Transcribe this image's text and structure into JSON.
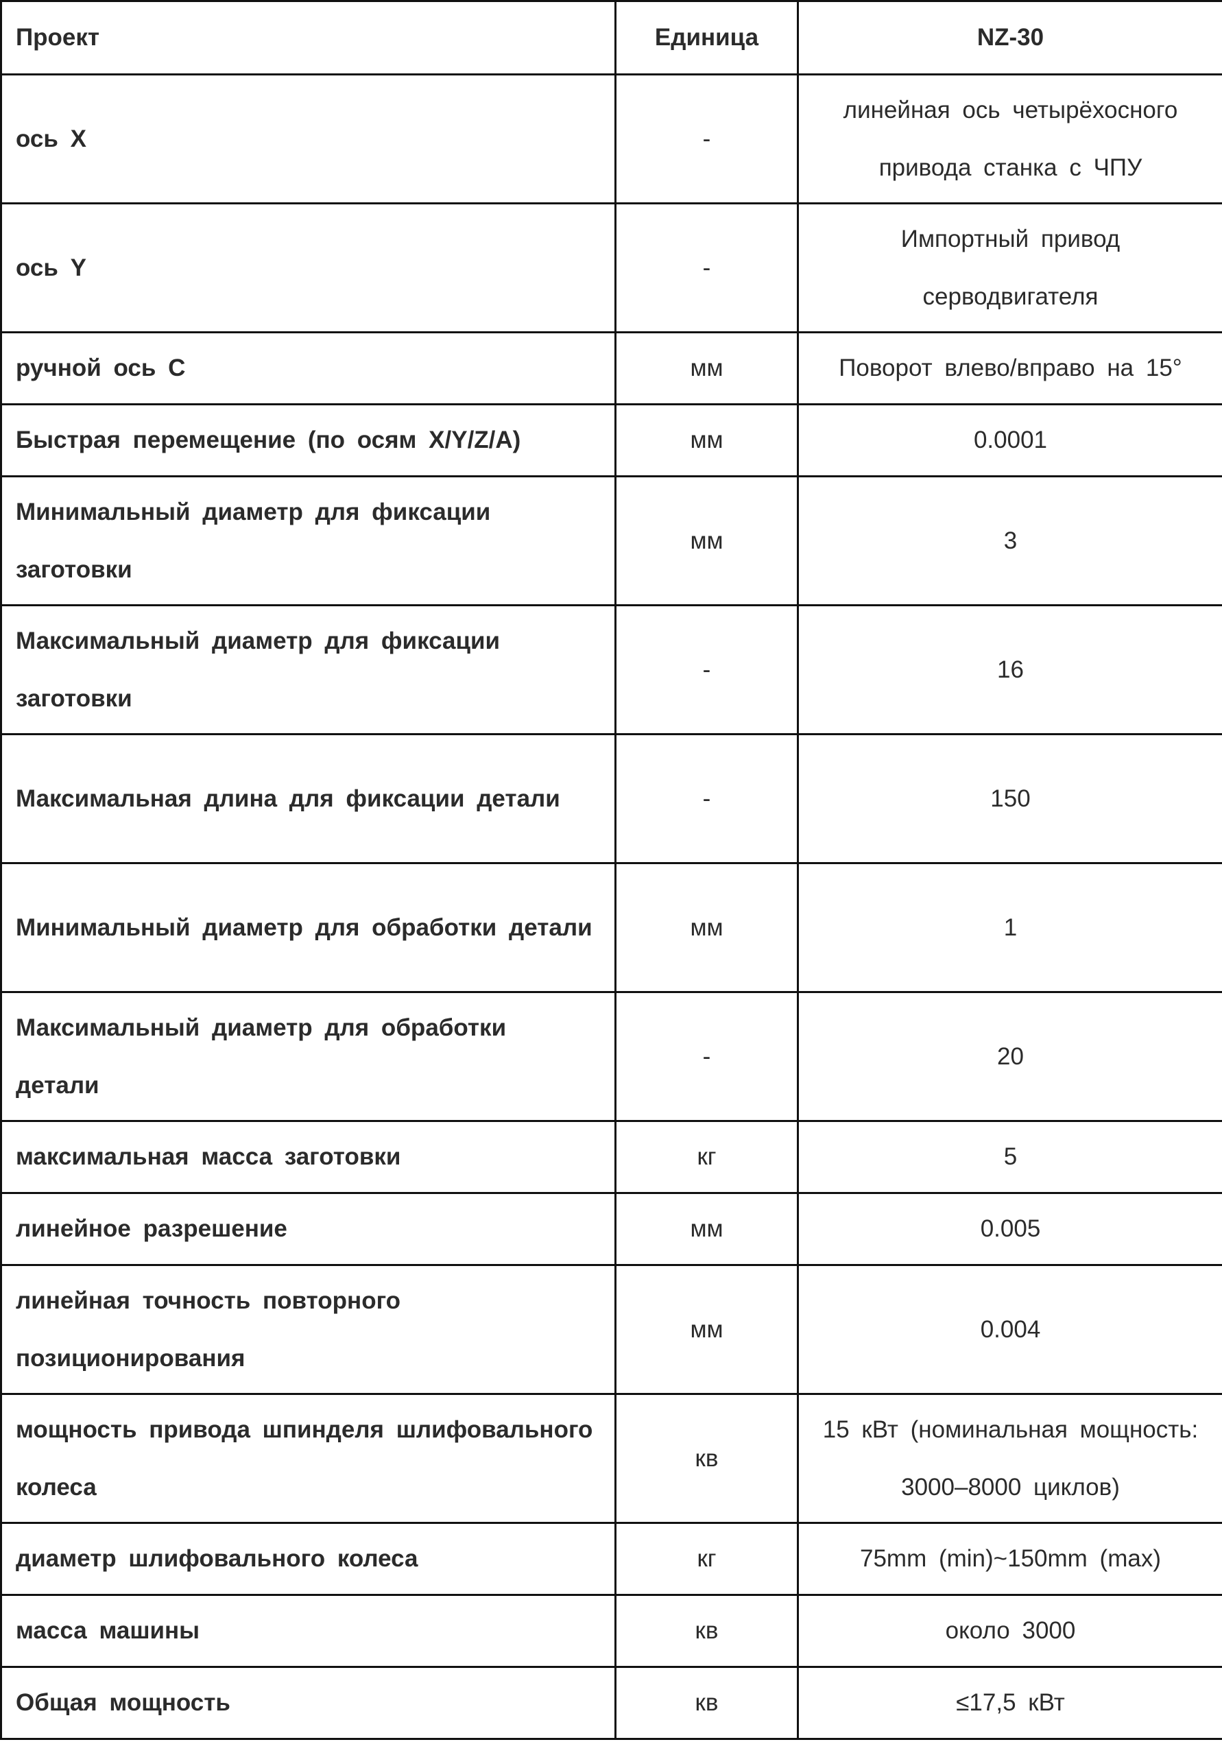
{
  "header": {
    "project": "Проект",
    "unit": "Единица",
    "model": "NZ-30"
  },
  "rows": [
    {
      "name": "ось X",
      "unit": "-",
      "value": "линейная ось четырёхосного привода станка с ЧПУ"
    },
    {
      "name": "ось Y",
      "unit": "-",
      "value": "Импортный привод серводвигателя"
    },
    {
      "name": "ручной ось C",
      "unit": "мм",
      "value": "Поворот влево/вправо на 15°"
    },
    {
      "name": "Быстрая перемещение (по осям X/Y/Z/A)",
      "unit": "мм",
      "value": "0.0001"
    },
    {
      "name": "Минимальный диаметр для фиксации заготовки",
      "unit": "мм",
      "value": "3"
    },
    {
      "name": "Максимальный диаметр для фиксации заготовки",
      "unit": "-",
      "value": "16"
    },
    {
      "name": "Максимальная длина для фиксации детали",
      "unit": "-",
      "value": "150"
    },
    {
      "name": "Минимальный диаметр для обработки детали",
      "unit": "мм",
      "value": "1"
    },
    {
      "name": "Максимальный диаметр для обработки детали",
      "unit": "-",
      "value": "20"
    },
    {
      "name": "максимальная масса заготовки",
      "unit": "кг",
      "value": "5"
    },
    {
      "name": "линейное разрешение",
      "unit": "мм",
      "value": "0.005"
    },
    {
      "name": "линейная точность повторного позиционирования",
      "unit": "мм",
      "value": "0.004"
    },
    {
      "name": "мощность привода шпинделя шлифовального колеса",
      "unit": "кв",
      "value": "15 кВт (номинальная мощность: 3000–8000 циклов)"
    },
    {
      "name": "диаметр шлифовального колеса",
      "unit": "кг",
      "value": "75mm (min)~150mm (max)"
    },
    {
      "name": "масса машины",
      "unit": "кв",
      "value": "около 3000"
    },
    {
      "name": "Общая мощность",
      "unit": "кв",
      "value": "≤17,5 кВт"
    }
  ]
}
